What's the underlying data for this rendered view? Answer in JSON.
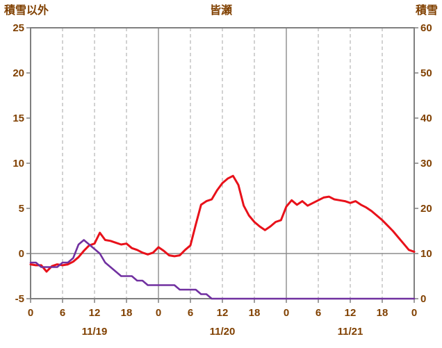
{
  "chart_data": {
    "type": "line",
    "title": "皆瀬",
    "left_axis": {
      "title": "積雪以外",
      "min": -5,
      "max": 25,
      "ticks": [
        25,
        20,
        15,
        10,
        5,
        0,
        -5
      ]
    },
    "right_axis": {
      "title": "積雪",
      "min": 0,
      "max": 60,
      "ticks": [
        60,
        50,
        40,
        30,
        20,
        10,
        0
      ]
    },
    "x_range_hours": [
      0,
      72
    ],
    "x_step_hours": 1,
    "x_tick_hours": [
      0,
      6,
      12,
      18,
      24,
      30,
      36,
      42,
      48,
      54,
      60,
      66,
      72
    ],
    "x_tick_labels": [
      "0",
      "6",
      "12",
      "18",
      "0",
      "6",
      "12",
      "18",
      "0",
      "6",
      "12",
      "18",
      "0"
    ],
    "day_boundary_hours": [
      24,
      48
    ],
    "zero_line_left_value": 0,
    "date_labels": [
      {
        "label": "11/19",
        "center_hour": 12
      },
      {
        "label": "11/20",
        "center_hour": 36
      },
      {
        "label": "11/21",
        "center_hour": 60
      }
    ],
    "grid": {
      "vertical_dashed_every_hours": 6,
      "horizontal": false
    },
    "legend_position": "none",
    "series": [
      {
        "key": "temperature",
        "name": "積雪以外",
        "axis": "left",
        "color": "#e8111a",
        "stroke_width": 3,
        "values": [
          -1.2,
          -1.3,
          -1.3,
          -2.0,
          -1.4,
          -1.2,
          -1.3,
          -1.2,
          -0.9,
          -0.4,
          0.3,
          0.9,
          1.1,
          2.3,
          1.5,
          1.4,
          1.2,
          1.0,
          1.1,
          0.6,
          0.4,
          0.1,
          -0.1,
          0.1,
          0.7,
          0.3,
          -0.2,
          -0.3,
          -0.2,
          0.4,
          0.9,
          3.2,
          5.4,
          5.8,
          6.0,
          7.0,
          7.8,
          8.3,
          8.6,
          7.6,
          5.3,
          4.2,
          3.5,
          3.0,
          2.6,
          3.0,
          3.5,
          3.7,
          5.2,
          5.9,
          5.4,
          5.8,
          5.3,
          5.6,
          5.9,
          6.2,
          6.3,
          6.0,
          5.9,
          5.8,
          5.6,
          5.8,
          5.4,
          5.1,
          4.7,
          4.2,
          3.7,
          3.1,
          2.5,
          1.8,
          1.1,
          0.4,
          0.2
        ]
      },
      {
        "key": "snow-depth",
        "name": "積雪",
        "axis": "right",
        "color": "#7030a0",
        "stroke_width": 2.6,
        "values": [
          8,
          8,
          7,
          7,
          7,
          7,
          8,
          8,
          9,
          12,
          13,
          12,
          11,
          10,
          8,
          7,
          6,
          5,
          5,
          5,
          4,
          4,
          3,
          3,
          3,
          3,
          3,
          3,
          2,
          2,
          2,
          2,
          1,
          1,
          0,
          0,
          0,
          0,
          0,
          0,
          0,
          0,
          0,
          0,
          0,
          0,
          0,
          0,
          0,
          0,
          0,
          0,
          0,
          0,
          0,
          0,
          0,
          0,
          0,
          0,
          0,
          0,
          0,
          0,
          0,
          0,
          0,
          0,
          0,
          0,
          0,
          0,
          0
        ]
      }
    ],
    "colors": {
      "plot_border": "#7f7f7f",
      "gridline_dashed": "#a6a6a6",
      "gridline_solid": "#8c8c8c",
      "zero_line": "#8c8c8c",
      "axis_text": "#804000"
    }
  }
}
